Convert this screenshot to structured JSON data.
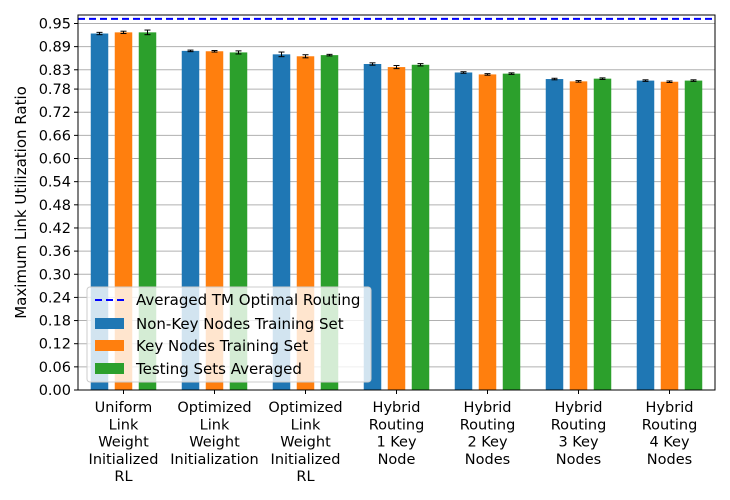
{
  "chart_data": {
    "type": "bar",
    "ylabel": "Maximum Link Utilization Ratio",
    "xlabel": "",
    "title": "",
    "ylim": [
      0,
      0.972
    ],
    "yticks": [
      "0.00",
      "0.06",
      "0.12",
      "0.18",
      "0.24",
      "0.30",
      "0.36",
      "0.42",
      "0.48",
      "0.54",
      "0.60",
      "0.66",
      "0.72",
      "0.78",
      "0.83",
      "0.89",
      "0.95"
    ],
    "grid": "horizontal",
    "legend_position": "lower-left",
    "categories": [
      [
        "Uniform",
        "Link",
        "Weight",
        "Initialized",
        "RL"
      ],
      [
        "Optimized",
        "Link",
        "Weight",
        "Initialization"
      ],
      [
        "Optimized",
        "Link",
        "Weight",
        "Initialized",
        "RL"
      ],
      [
        "Hybrid",
        "Routing",
        "1 Key",
        "Node"
      ],
      [
        "Hybrid",
        "Routing",
        "2 Key",
        "Nodes"
      ],
      [
        "Hybrid",
        "Routing",
        "3 Key",
        "Nodes"
      ],
      [
        "Hybrid",
        "Routing",
        "4 Key",
        "Nodes"
      ]
    ],
    "series": [
      {
        "name": "Non-Key Nodes Training Set",
        "color": "#1f77b4",
        "values": [
          0.924,
          0.879,
          0.87,
          0.845,
          0.823,
          0.806,
          0.802
        ],
        "errors": [
          0.003,
          0.002,
          0.006,
          0.003,
          0.002,
          0.002,
          0.002
        ]
      },
      {
        "name": "Key Nodes Training Set",
        "color": "#ff7f0e",
        "values": [
          0.927,
          0.878,
          0.865,
          0.837,
          0.818,
          0.8,
          0.799
        ],
        "errors": [
          0.003,
          0.002,
          0.004,
          0.004,
          0.002,
          0.002,
          0.002
        ]
      },
      {
        "name": "Testing Sets Averaged",
        "color": "#2ca02c",
        "values": [
          0.927,
          0.875,
          0.868,
          0.843,
          0.82,
          0.807,
          0.802
        ],
        "errors": [
          0.006,
          0.004,
          0.002,
          0.003,
          0.002,
          0.002,
          0.002
        ]
      }
    ],
    "reference_line": {
      "name": "Averaged TM Optimal Routing",
      "value": 0.962,
      "color": "#0000ff",
      "style": "dashed"
    }
  }
}
